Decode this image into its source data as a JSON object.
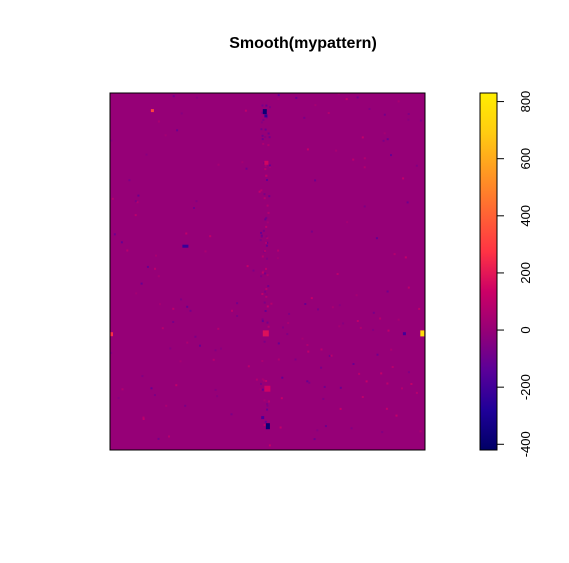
{
  "chart_data": {
    "type": "heatmap",
    "title": "Smooth(mypattern)",
    "xlabel": "",
    "ylabel": "",
    "background_value": 0,
    "colorbar": {
      "range": [
        -420,
        830
      ],
      "ticks": [
        -400,
        -200,
        0,
        200,
        400,
        600,
        800
      ],
      "tick_labels": [
        "-400",
        "-200",
        "0",
        "200",
        "400",
        "600",
        "800"
      ],
      "colors": [
        "#000066",
        "#1f0099",
        "#5a0099",
        "#950077",
        "#cc0066",
        "#ff3344",
        "#ff6633",
        "#ff9922",
        "#ffcc11",
        "#ffee00"
      ]
    },
    "grid": false,
    "legend": "colorbar-right"
  }
}
